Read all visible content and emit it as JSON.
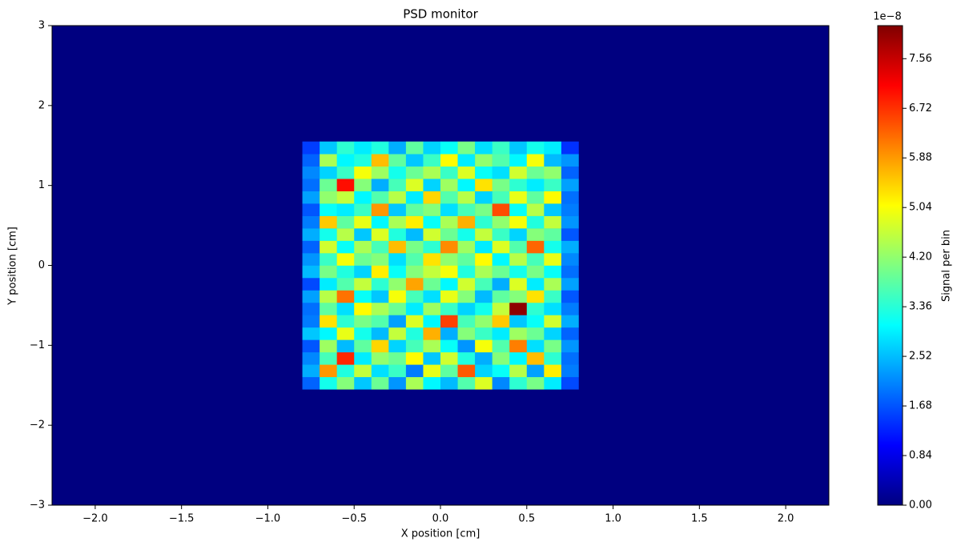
{
  "chart_data": {
    "type": "heatmap",
    "title": "PSD monitor",
    "x_label": "X position [cm]",
    "y_label": "Y position [cm]",
    "colormap": "jet",
    "colorbar_label": "Signal per bin",
    "colorbar_offset": "1e−8",
    "xlim": [
      -2.25,
      2.25
    ],
    "ylim": [
      -3,
      3
    ],
    "clim": [
      0,
      8.12
    ],
    "xticks": [
      {
        "value": -2,
        "label": "−2.0"
      },
      {
        "value": -1.5,
        "label": "−1.5"
      },
      {
        "value": -1,
        "label": "−1.0"
      },
      {
        "value": -0.5,
        "label": "−0.5"
      },
      {
        "value": 0,
        "label": "0.0"
      },
      0.5,
      {
        "value": 1,
        "label": "1.0"
      },
      1.5,
      {
        "value": 2,
        "label": "2.0"
      }
    ],
    "yticks": [
      {
        "value": -3,
        "label": "−3"
      },
      {
        "value": -2,
        "label": "−2"
      },
      {
        "value": -1,
        "label": "−1"
      },
      0,
      1,
      2,
      3
    ],
    "cticks": [
      {
        "value": 0,
        "label": "0.00"
      },
      0.84,
      1.68,
      2.52,
      3.36,
      {
        "value": 4.2,
        "label": "4.20"
      },
      5.04,
      5.88,
      6.72,
      7.56
    ],
    "x_bins": [
      -0.8,
      -0.7,
      -0.6,
      -0.5,
      -0.4,
      -0.3,
      -0.2,
      -0.1,
      0,
      0.1,
      0.2,
      0.3,
      0.4,
      0.5,
      0.6,
      0.7,
      0.8
    ],
    "y_bins": [
      -1.55,
      -1.395,
      -1.24,
      -1.085,
      -0.93,
      -0.775,
      -0.62,
      -0.465,
      -0.31,
      -0.155,
      0,
      0.155,
      0.31,
      0.465,
      0.62,
      0.775,
      0.93,
      1.085,
      1.24,
      1.395,
      1.55
    ],
    "values": [
      [
        1.8,
        3.2,
        4.1,
        2.6,
        3.9,
        2.2,
        4.4,
        3.0,
        2.5,
        3.7,
        4.8,
        2.1,
        3.4,
        4.0,
        2.9,
        1.6
      ],
      [
        2.4,
        5.9,
        3.3,
        4.6,
        2.8,
        3.5,
        2.0,
        4.9,
        3.8,
        6.4,
        2.7,
        3.1,
        4.5,
        2.3,
        5.2,
        2.0
      ],
      [
        2.1,
        3.6,
        6.8,
        2.9,
        4.2,
        3.9,
        5.1,
        2.6,
        4.7,
        3.3,
        2.4,
        4.1,
        3.0,
        5.6,
        3.4,
        1.9
      ],
      [
        1.7,
        4.3,
        2.5,
        3.8,
        5.4,
        2.7,
        3.6,
        4.4,
        3.1,
        2.2,
        5.0,
        3.7,
        6.1,
        2.8,
        4.0,
        2.2
      ],
      [
        2.6,
        3.0,
        4.9,
        3.2,
        2.5,
        4.6,
        3.3,
        5.7,
        2.4,
        4.1,
        3.5,
        2.9,
        4.3,
        3.9,
        2.7,
        1.8
      ],
      [
        2.0,
        5.3,
        3.4,
        4.0,
        3.7,
        2.3,
        4.8,
        3.0,
        6.6,
        3.6,
        4.2,
        5.5,
        2.6,
        3.1,
        4.7,
        2.4
      ],
      [
        1.9,
        3.8,
        2.8,
        5.1,
        4.4,
        3.9,
        2.9,
        4.3,
        3.5,
        2.7,
        3.2,
        4.6,
        8.0,
        3.4,
        2.8,
        2.0
      ],
      [
        2.3,
        4.5,
        6.2,
        3.1,
        2.6,
        5.0,
        3.6,
        2.8,
        4.9,
        4.1,
        2.5,
        3.8,
        4.1,
        5.3,
        3.5,
        1.7
      ],
      [
        1.6,
        2.9,
        3.7,
        4.6,
        3.4,
        4.2,
        5.8,
        3.9,
        3.0,
        4.7,
        3.6,
        2.4,
        4.8,
        2.9,
        4.4,
        2.3
      ],
      [
        2.5,
        4.0,
        3.3,
        2.7,
        5.2,
        3.1,
        4.1,
        4.6,
        5.0,
        3.3,
        4.4,
        3.9,
        3.2,
        4.0,
        3.1,
        1.9
      ],
      [
        2.2,
        3.5,
        5.0,
        3.9,
        4.1,
        2.8,
        3.7,
        5.3,
        4.2,
        3.8,
        5.1,
        3.0,
        4.5,
        3.6,
        4.9,
        2.1
      ],
      [
        1.8,
        4.7,
        3.1,
        4.4,
        3.6,
        5.6,
        4.0,
        3.4,
        6.0,
        4.3,
        2.9,
        4.8,
        3.7,
        6.3,
        3.2,
        2.4
      ],
      [
        2.4,
        3.2,
        4.5,
        2.6,
        4.8,
        3.3,
        2.5,
        4.7,
        3.9,
        3.2,
        4.6,
        3.5,
        2.7,
        4.1,
        3.8,
        1.7
      ],
      [
        2.0,
        5.5,
        3.8,
        4.9,
        3.0,
        4.4,
        5.2,
        3.1,
        4.4,
        5.7,
        3.4,
        4.2,
        5.0,
        3.3,
        4.6,
        2.2
      ],
      [
        1.7,
        3.1,
        2.9,
        3.5,
        5.9,
        2.6,
        3.8,
        4.1,
        2.8,
        3.6,
        4.0,
        6.5,
        3.1,
        4.5,
        2.6,
        2.0
      ],
      [
        2.3,
        4.2,
        4.6,
        3.0,
        3.7,
        4.5,
        2.9,
        5.4,
        3.7,
        4.5,
        2.7,
        3.6,
        4.9,
        3.8,
        5.1,
        1.9
      ],
      [
        1.9,
        3.9,
        7.0,
        4.1,
        2.4,
        3.6,
        4.8,
        2.7,
        4.3,
        3.0,
        5.3,
        4.0,
        3.4,
        2.9,
        3.5,
        2.3
      ],
      [
        2.1,
        2.7,
        3.5,
        5.0,
        4.3,
        3.2,
        3.9,
        4.4,
        3.5,
        4.8,
        3.1,
        2.8,
        4.7,
        3.9,
        4.2,
        1.8
      ],
      [
        1.8,
        4.4,
        3.0,
        3.3,
        5.6,
        3.8,
        2.6,
        3.5,
        5.1,
        2.9,
        4.2,
        3.7,
        3.0,
        5.0,
        2.5,
        2.2
      ],
      [
        1.5,
        2.6,
        3.4,
        2.9,
        3.3,
        2.4,
        3.8,
        2.7,
        3.1,
        4.0,
        2.8,
        3.5,
        2.6,
        3.2,
        2.9,
        1.4
      ]
    ]
  }
}
